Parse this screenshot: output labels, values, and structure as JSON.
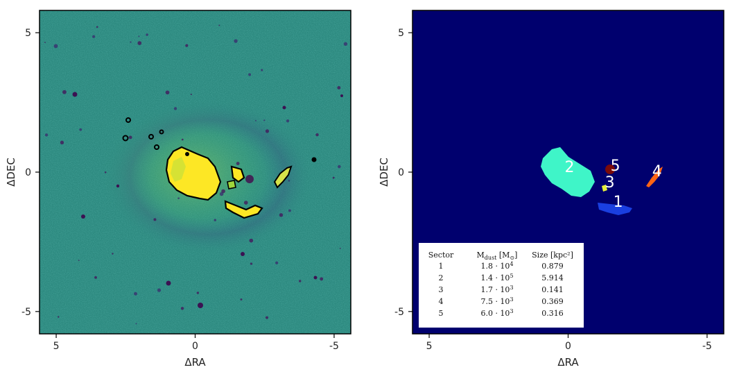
{
  "chart_data": [
    {
      "type": "heatmap",
      "title": "",
      "xlabel": "ΔRA",
      "ylabel": "ΔDEC",
      "xlim": [
        5.6,
        -5.6
      ],
      "ylim": [
        -5.8,
        5.8
      ],
      "xticks": [
        {
          "value": 5,
          "label": "5"
        },
        {
          "value": 0,
          "label": "0"
        },
        {
          "value": -5,
          "label": "-5"
        }
      ],
      "yticks": [
        {
          "value": 5,
          "label": "5"
        },
        {
          "value": 0,
          "label": "0"
        },
        {
          "value": -5,
          "label": "-5"
        }
      ],
      "colormap": "viridis",
      "background_color": "#2d8a80",
      "contour_color": "#000000"
    },
    {
      "type": "heatmap",
      "title": "",
      "xlabel": "ΔRA",
      "ylabel": "ΔDEC",
      "xlim": [
        5.6,
        -5.6
      ],
      "ylim": [
        -5.8,
        5.8
      ],
      "xticks": [
        {
          "value": 5,
          "label": "5"
        },
        {
          "value": 0,
          "label": "0"
        },
        {
          "value": -5,
          "label": "-5"
        }
      ],
      "yticks": [
        {
          "value": 5,
          "label": "5"
        },
        {
          "value": 0,
          "label": "0"
        },
        {
          "value": -5,
          "label": "-5"
        }
      ],
      "background_color": "#00006e",
      "regions": [
        {
          "label": "1",
          "color": "#1a3fe0",
          "label_x": -1.8,
          "label_y": -1.05
        },
        {
          "label": "2",
          "color": "#3ff5c8",
          "label_x": -0.05,
          "label_y": 0.2
        },
        {
          "label": "3",
          "color": "#e8f23a",
          "label_x": -1.5,
          "label_y": -0.35
        },
        {
          "label": "4",
          "color": "#ff6414",
          "label_x": -3.2,
          "label_y": 0.05
        },
        {
          "label": "5",
          "color": "#7a0a0a",
          "label_x": -1.7,
          "label_y": 0.25
        }
      ],
      "table": {
        "columns": [
          "Sector",
          "M_dust [M_⊙]",
          "Size [kpc²]"
        ],
        "rows": [
          {
            "sector": "1",
            "mass_mantissa": "1.8",
            "mass_exp": "4",
            "size": "0.879"
          },
          {
            "sector": "2",
            "mass_mantissa": "1.4",
            "mass_exp": "5",
            "size": "5.914"
          },
          {
            "sector": "3",
            "mass_mantissa": "1.7",
            "mass_exp": "3",
            "size": "0.141"
          },
          {
            "sector": "4",
            "mass_mantissa": "7.5",
            "mass_exp": "3",
            "size": "0.369"
          },
          {
            "sector": "5",
            "mass_mantissa": "6.0",
            "mass_exp": "3",
            "size": "0.316"
          }
        ]
      }
    }
  ]
}
